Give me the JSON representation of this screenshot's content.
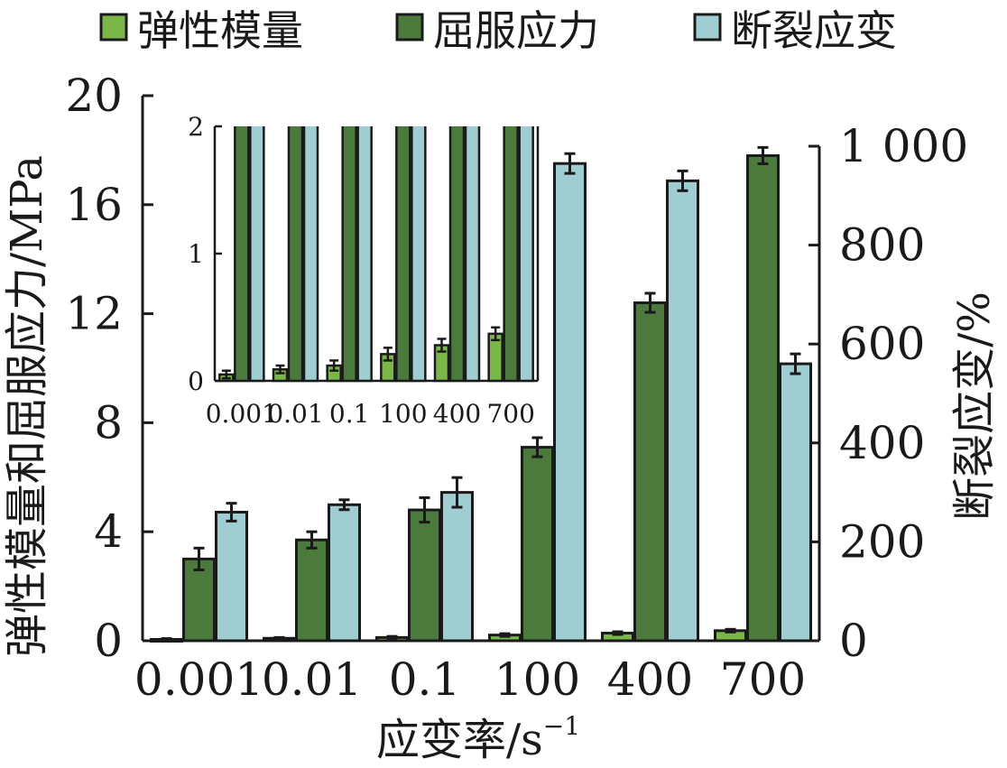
{
  "chart_data": {
    "type": "bar",
    "categories": [
      "0.001",
      "0.01",
      "0.1",
      "100",
      "400",
      "700"
    ],
    "xlabel": "应变率/s",
    "xlabel_superscript": "−1",
    "ylabel": "弹性模量和屈服应力/MPa",
    "y2label": "断裂应变/%",
    "ylim": [
      0,
      20
    ],
    "y_ticks": [
      0,
      4,
      8,
      12,
      16,
      20
    ],
    "y2lim": [
      0,
      1000
    ],
    "y2_ticks": [
      0,
      200,
      400,
      600,
      800,
      1000
    ],
    "y2_tick_labels": [
      "0",
      "200",
      "400",
      "600",
      "800",
      "1 000"
    ],
    "legend_position": "top",
    "series": [
      {
        "name": "弹性模量",
        "axis": "left",
        "color": "#7ab648",
        "values": [
          0.05,
          0.09,
          0.12,
          0.21,
          0.28,
          0.37
        ],
        "errors": [
          0.03,
          0.03,
          0.04,
          0.05,
          0.05,
          0.05
        ]
      },
      {
        "name": "屈服应力",
        "axis": "left",
        "color": "#4b7a3c",
        "values": [
          3.0,
          3.7,
          4.8,
          7.1,
          12.4,
          17.8
        ],
        "errors": [
          0.4,
          0.3,
          0.45,
          0.35,
          0.35,
          0.3
        ]
      },
      {
        "name": "断裂应变",
        "axis": "right",
        "color": "#9fcdd2",
        "values": [
          260,
          275,
          300,
          965,
          930,
          560
        ],
        "errors": [
          18,
          10,
          30,
          20,
          20,
          20
        ]
      }
    ],
    "inset": {
      "ylim": [
        0,
        2
      ],
      "y_ticks": [
        0,
        1,
        2
      ],
      "categories": [
        "0.001",
        "0.01",
        "0.1",
        "100",
        "400",
        "700"
      ]
    }
  }
}
